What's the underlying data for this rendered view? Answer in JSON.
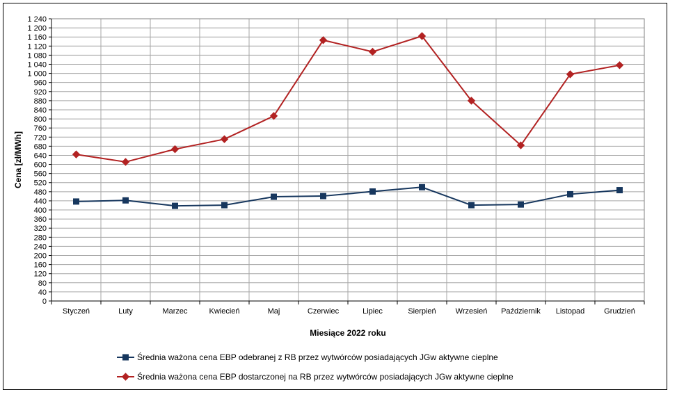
{
  "chart_data": {
    "type": "line",
    "title": "",
    "xlabel": "Miesiące 2022  roku",
    "ylabel": "Cena [zł/MWh]",
    "ylim": [
      0,
      1240
    ],
    "ytick_step": 40,
    "grid": true,
    "legend_position": "bottom",
    "categories": [
      "Styczeń",
      "Luty",
      "Marzec",
      "Kwiecień",
      "Maj",
      "Czerwiec",
      "Lipiec",
      "Sierpień",
      "Wrzesień",
      "Październik",
      "Listopad",
      "Grudzień"
    ],
    "series": [
      {
        "name": "Średnia ważona cena EBP odebranej z RB przez wytwórców posiadających JGw aktywne cieplne",
        "color": "#17375e",
        "marker": "square",
        "values": [
          437,
          442,
          418,
          421,
          458,
          461,
          481,
          500,
          421,
          424,
          469,
          487
        ]
      },
      {
        "name": "Średnia ważona cena EBP dostarczonej na RB przez wytwórców posiadających JGw aktywne cieplne",
        "color": "#b22222",
        "marker": "diamond",
        "values": [
          644,
          611,
          667,
          711,
          813,
          1146,
          1095,
          1164,
          880,
          684,
          996,
          1036
        ]
      }
    ]
  }
}
